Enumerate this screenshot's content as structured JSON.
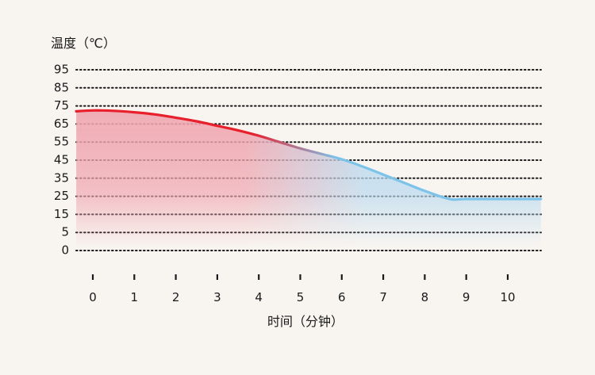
{
  "chart_data": {
    "type": "area",
    "title": "",
    "ylabel": "温度（℃）",
    "xlabel": "时间（分钟）",
    "y_ticks": [
      0,
      5,
      15,
      25,
      35,
      45,
      55,
      65,
      75,
      85,
      95
    ],
    "x_ticks": [
      0,
      1,
      2,
      3,
      4,
      5,
      6,
      7,
      8,
      9,
      10
    ],
    "x_tick_labels": [
      "0",
      "1",
      "2",
      "3",
      "4",
      "5",
      "6",
      "7",
      "8",
      "9",
      "10"
    ],
    "grid": true,
    "legend": "none",
    "colors": {
      "hot": "#e8202c",
      "cold": "#7cc3ea",
      "fill_hot": "#f0a6b0",
      "fill_cold": "#b9d9ee",
      "grid": "#1a1a1a",
      "text": "#1a1a1a",
      "background": "#f8f5f1"
    },
    "series": [
      {
        "x": [
          -0.4,
          0,
          0.5,
          1,
          1.5,
          2,
          2.5,
          3,
          3.5,
          4,
          4.5,
          5,
          5.5,
          6,
          6.5,
          7,
          7.5,
          8,
          8.6,
          9,
          10,
          10.8
        ],
        "y": [
          72,
          72.5,
          72.3,
          71.5,
          70.3,
          68.5,
          66.5,
          64,
          61.5,
          58.5,
          55,
          51.5,
          48.5,
          45.5,
          41.5,
          37,
          32.5,
          28,
          23.5,
          23.5,
          23.5,
          23.5
        ]
      }
    ]
  }
}
